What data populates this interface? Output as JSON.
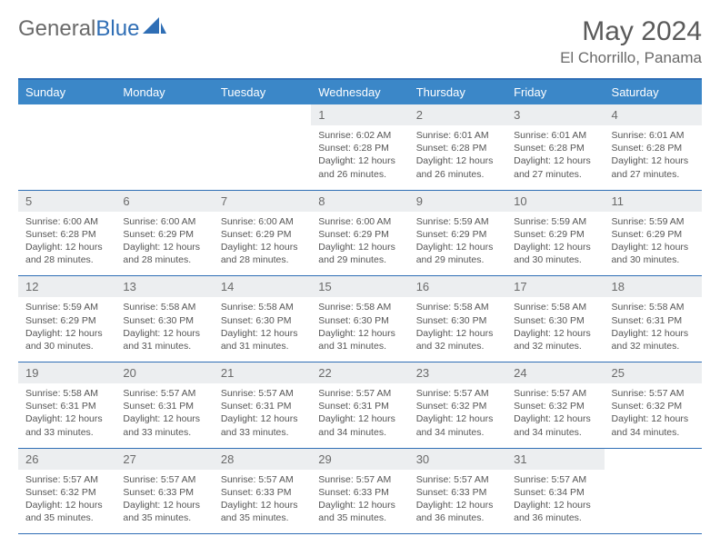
{
  "brand": {
    "part1": "General",
    "part2": "Blue"
  },
  "title": "May 2024",
  "location": "El Chorrillo, Panama",
  "colors": {
    "header_bg": "#3b87c8",
    "border": "#2f6eb5",
    "daynum_bg": "#eceef0",
    "text": "#4a4a4a"
  },
  "dow": [
    "Sunday",
    "Monday",
    "Tuesday",
    "Wednesday",
    "Thursday",
    "Friday",
    "Saturday"
  ],
  "weeks": [
    [
      {
        "n": "",
        "sr": "",
        "ss": "",
        "dl": ""
      },
      {
        "n": "",
        "sr": "",
        "ss": "",
        "dl": ""
      },
      {
        "n": "",
        "sr": "",
        "ss": "",
        "dl": ""
      },
      {
        "n": "1",
        "sr": "Sunrise: 6:02 AM",
        "ss": "Sunset: 6:28 PM",
        "dl": "Daylight: 12 hours and 26 minutes."
      },
      {
        "n": "2",
        "sr": "Sunrise: 6:01 AM",
        "ss": "Sunset: 6:28 PM",
        "dl": "Daylight: 12 hours and 26 minutes."
      },
      {
        "n": "3",
        "sr": "Sunrise: 6:01 AM",
        "ss": "Sunset: 6:28 PM",
        "dl": "Daylight: 12 hours and 27 minutes."
      },
      {
        "n": "4",
        "sr": "Sunrise: 6:01 AM",
        "ss": "Sunset: 6:28 PM",
        "dl": "Daylight: 12 hours and 27 minutes."
      }
    ],
    [
      {
        "n": "5",
        "sr": "Sunrise: 6:00 AM",
        "ss": "Sunset: 6:28 PM",
        "dl": "Daylight: 12 hours and 28 minutes."
      },
      {
        "n": "6",
        "sr": "Sunrise: 6:00 AM",
        "ss": "Sunset: 6:29 PM",
        "dl": "Daylight: 12 hours and 28 minutes."
      },
      {
        "n": "7",
        "sr": "Sunrise: 6:00 AM",
        "ss": "Sunset: 6:29 PM",
        "dl": "Daylight: 12 hours and 28 minutes."
      },
      {
        "n": "8",
        "sr": "Sunrise: 6:00 AM",
        "ss": "Sunset: 6:29 PM",
        "dl": "Daylight: 12 hours and 29 minutes."
      },
      {
        "n": "9",
        "sr": "Sunrise: 5:59 AM",
        "ss": "Sunset: 6:29 PM",
        "dl": "Daylight: 12 hours and 29 minutes."
      },
      {
        "n": "10",
        "sr": "Sunrise: 5:59 AM",
        "ss": "Sunset: 6:29 PM",
        "dl": "Daylight: 12 hours and 30 minutes."
      },
      {
        "n": "11",
        "sr": "Sunrise: 5:59 AM",
        "ss": "Sunset: 6:29 PM",
        "dl": "Daylight: 12 hours and 30 minutes."
      }
    ],
    [
      {
        "n": "12",
        "sr": "Sunrise: 5:59 AM",
        "ss": "Sunset: 6:29 PM",
        "dl": "Daylight: 12 hours and 30 minutes."
      },
      {
        "n": "13",
        "sr": "Sunrise: 5:58 AM",
        "ss": "Sunset: 6:30 PM",
        "dl": "Daylight: 12 hours and 31 minutes."
      },
      {
        "n": "14",
        "sr": "Sunrise: 5:58 AM",
        "ss": "Sunset: 6:30 PM",
        "dl": "Daylight: 12 hours and 31 minutes."
      },
      {
        "n": "15",
        "sr": "Sunrise: 5:58 AM",
        "ss": "Sunset: 6:30 PM",
        "dl": "Daylight: 12 hours and 31 minutes."
      },
      {
        "n": "16",
        "sr": "Sunrise: 5:58 AM",
        "ss": "Sunset: 6:30 PM",
        "dl": "Daylight: 12 hours and 32 minutes."
      },
      {
        "n": "17",
        "sr": "Sunrise: 5:58 AM",
        "ss": "Sunset: 6:30 PM",
        "dl": "Daylight: 12 hours and 32 minutes."
      },
      {
        "n": "18",
        "sr": "Sunrise: 5:58 AM",
        "ss": "Sunset: 6:31 PM",
        "dl": "Daylight: 12 hours and 32 minutes."
      }
    ],
    [
      {
        "n": "19",
        "sr": "Sunrise: 5:58 AM",
        "ss": "Sunset: 6:31 PM",
        "dl": "Daylight: 12 hours and 33 minutes."
      },
      {
        "n": "20",
        "sr": "Sunrise: 5:57 AM",
        "ss": "Sunset: 6:31 PM",
        "dl": "Daylight: 12 hours and 33 minutes."
      },
      {
        "n": "21",
        "sr": "Sunrise: 5:57 AM",
        "ss": "Sunset: 6:31 PM",
        "dl": "Daylight: 12 hours and 33 minutes."
      },
      {
        "n": "22",
        "sr": "Sunrise: 5:57 AM",
        "ss": "Sunset: 6:31 PM",
        "dl": "Daylight: 12 hours and 34 minutes."
      },
      {
        "n": "23",
        "sr": "Sunrise: 5:57 AM",
        "ss": "Sunset: 6:32 PM",
        "dl": "Daylight: 12 hours and 34 minutes."
      },
      {
        "n": "24",
        "sr": "Sunrise: 5:57 AM",
        "ss": "Sunset: 6:32 PM",
        "dl": "Daylight: 12 hours and 34 minutes."
      },
      {
        "n": "25",
        "sr": "Sunrise: 5:57 AM",
        "ss": "Sunset: 6:32 PM",
        "dl": "Daylight: 12 hours and 34 minutes."
      }
    ],
    [
      {
        "n": "26",
        "sr": "Sunrise: 5:57 AM",
        "ss": "Sunset: 6:32 PM",
        "dl": "Daylight: 12 hours and 35 minutes."
      },
      {
        "n": "27",
        "sr": "Sunrise: 5:57 AM",
        "ss": "Sunset: 6:33 PM",
        "dl": "Daylight: 12 hours and 35 minutes."
      },
      {
        "n": "28",
        "sr": "Sunrise: 5:57 AM",
        "ss": "Sunset: 6:33 PM",
        "dl": "Daylight: 12 hours and 35 minutes."
      },
      {
        "n": "29",
        "sr": "Sunrise: 5:57 AM",
        "ss": "Sunset: 6:33 PM",
        "dl": "Daylight: 12 hours and 35 minutes."
      },
      {
        "n": "30",
        "sr": "Sunrise: 5:57 AM",
        "ss": "Sunset: 6:33 PM",
        "dl": "Daylight: 12 hours and 36 minutes."
      },
      {
        "n": "31",
        "sr": "Sunrise: 5:57 AM",
        "ss": "Sunset: 6:34 PM",
        "dl": "Daylight: 12 hours and 36 minutes."
      },
      {
        "n": "",
        "sr": "",
        "ss": "",
        "dl": ""
      }
    ]
  ]
}
